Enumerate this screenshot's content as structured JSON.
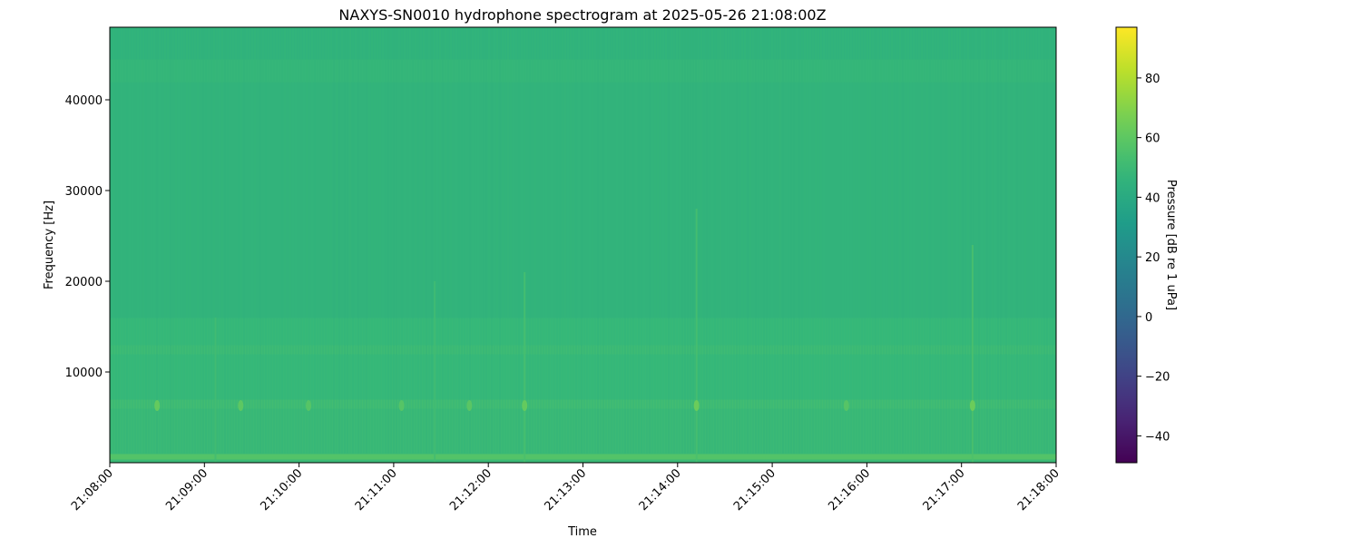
{
  "chart_data": {
    "type": "heatmap",
    "title": "NAXYS-SN0010 hydrophone spectrogram at 2025-05-26 21:08:00Z",
    "xlabel": "Time",
    "ylabel": "Frequency [Hz]",
    "xlim": [
      "21:08:00",
      "21:18:00"
    ],
    "x_ticks": [
      "21:08:00",
      "21:09:00",
      "21:10:00",
      "21:11:00",
      "21:12:00",
      "21:13:00",
      "21:14:00",
      "21:15:00",
      "21:16:00",
      "21:17:00",
      "21:18:00"
    ],
    "ylim": [
      0,
      48000
    ],
    "y_ticks": [
      10000,
      20000,
      30000,
      40000
    ],
    "y_tick_labels": [
      "10000",
      "20000",
      "30000",
      "40000"
    ],
    "colormap": "viridis",
    "colorbar": {
      "label": "Pressure [dB re 1 uPa]",
      "clim": [
        -49,
        97
      ],
      "ticks": [
        -40,
        -20,
        0,
        20,
        40,
        60,
        80
      ],
      "tick_labels": [
        "−40",
        "−20",
        "0",
        "20",
        "40",
        "60",
        "80"
      ]
    },
    "frequency_profile_db": [
      {
        "f_from": 0,
        "f_to": 400,
        "db": 50
      },
      {
        "f_from": 400,
        "f_to": 1000,
        "db": 57
      },
      {
        "f_from": 1000,
        "f_to": 6000,
        "db": 50
      },
      {
        "f_from": 6000,
        "f_to": 7000,
        "db": 52
      },
      {
        "f_from": 7000,
        "f_to": 12000,
        "db": 49
      },
      {
        "f_from": 12000,
        "f_to": 13000,
        "db": 51
      },
      {
        "f_from": 13000,
        "f_to": 16000,
        "db": 49
      },
      {
        "f_from": 16000,
        "f_to": 42000,
        "db": 46
      },
      {
        "f_from": 42000,
        "f_to": 44500,
        "db": 48
      },
      {
        "f_from": 44500,
        "f_to": 48000,
        "db": 45
      }
    ],
    "events": [
      {
        "time": "21:08:30",
        "f_hz": 6300,
        "db": 62
      },
      {
        "time": "21:09:23",
        "f_hz": 6300,
        "db": 60
      },
      {
        "time": "21:10:06",
        "f_hz": 6300,
        "db": 58
      },
      {
        "time": "21:11:05",
        "f_hz": 6300,
        "db": 58
      },
      {
        "time": "21:11:48",
        "f_hz": 6300,
        "db": 59
      },
      {
        "time": "21:12:23",
        "f_hz": 6300,
        "db": 62
      },
      {
        "time": "21:14:12",
        "f_hz": 6300,
        "db": 64
      },
      {
        "time": "21:15:47",
        "f_hz": 6300,
        "db": 58
      },
      {
        "time": "21:17:07",
        "f_hz": 6300,
        "db": 64
      }
    ],
    "broadband_streaks": [
      {
        "time": "21:09:07",
        "f_max_hz": 16000,
        "db": 52
      },
      {
        "time": "21:11:26",
        "f_max_hz": 20000,
        "db": 52
      },
      {
        "time": "21:12:23",
        "f_max_hz": 21000,
        "db": 54
      },
      {
        "time": "21:14:12",
        "f_max_hz": 28000,
        "db": 54
      },
      {
        "time": "21:17:07",
        "f_max_hz": 24000,
        "db": 55
      }
    ]
  }
}
